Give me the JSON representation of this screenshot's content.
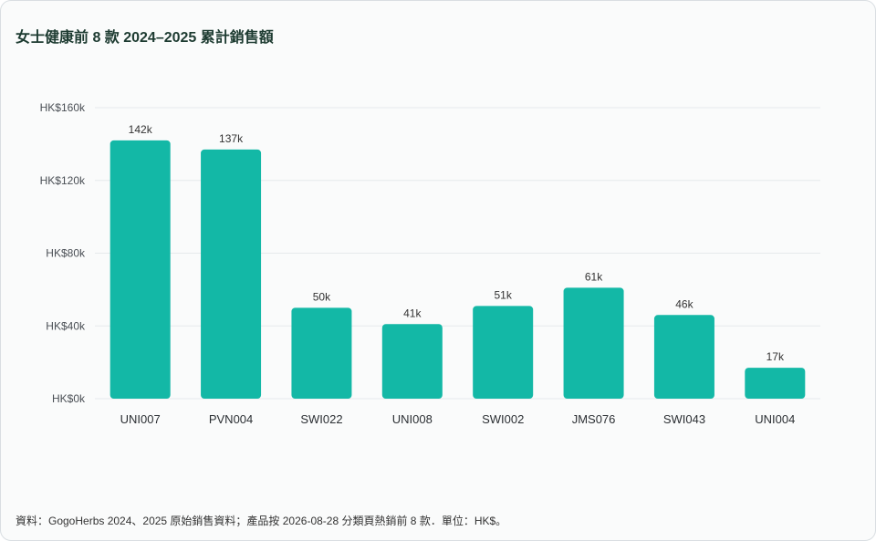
{
  "title": "女士健康前 8 款 2024–2025 累計銷售額",
  "footnote": "資料：GogoHerbs 2024、2025 原始銷售資料；產品按 2026-08-28 分類頁熱銷前 8 款．單位：HK$。",
  "colors": {
    "bar": "#13b8a6",
    "grid": "#e6e9ec",
    "axis_text": "#4a4f55",
    "value_text": "#333333",
    "title": "#1d3b31"
  },
  "chart_data": {
    "type": "bar",
    "title": "女士健康前 8 款 2024–2025 累計銷售額",
    "xlabel": "",
    "ylabel": "",
    "categories": [
      "UNI007",
      "PVN004",
      "SWI022",
      "UNI008",
      "SWI002",
      "JMS076",
      "SWI043",
      "UNI004"
    ],
    "values": [
      142000,
      137000,
      50000,
      41000,
      51000,
      61000,
      46000,
      17000
    ],
    "value_labels": [
      "142k",
      "137k",
      "50k",
      "41k",
      "51k",
      "61k",
      "46k",
      "17k"
    ],
    "ylim": [
      0,
      160000
    ],
    "yticks": [
      0,
      40000,
      80000,
      120000,
      160000
    ],
    "ytick_labels": [
      "HK$0k",
      "HK$40k",
      "HK$80k",
      "HK$120k",
      "HK$160k"
    ],
    "grid": true,
    "legend": "none"
  }
}
